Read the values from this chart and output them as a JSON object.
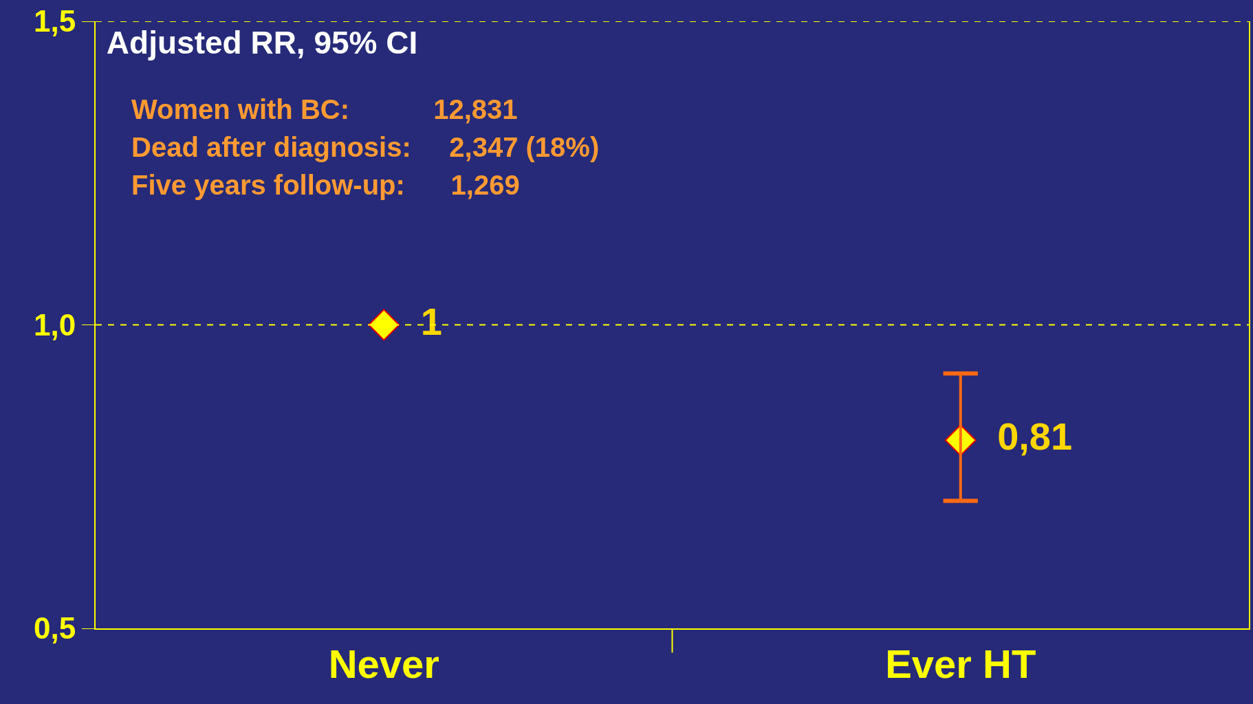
{
  "chart_data": {
    "type": "scatter",
    "title": "Adjusted RR, 95% CI",
    "categories": [
      "Never",
      "Ever HT"
    ],
    "values": [
      1,
      0.81
    ],
    "value_labels": [
      "1",
      "0,81"
    ],
    "errors": [
      null,
      [
        0.71,
        0.92
      ]
    ],
    "color": "#ffff00",
    "marker": "diamond",
    "ylim": [
      0.5,
      1.5
    ],
    "yticks": [
      {
        "value": 0.5,
        "label": "0,5"
      },
      {
        "value": 1.0,
        "label": "1,0"
      },
      {
        "value": 1.5,
        "label": "1,5"
      }
    ],
    "ref_lines": [
      {
        "axis": "y",
        "value": 1.0,
        "label": null,
        "color": "#ffff00",
        "line_style": "dashed"
      },
      {
        "axis": "y",
        "value": 1.5,
        "label": null,
        "color": "#ffff00",
        "line_style": "dashed"
      }
    ],
    "annotations": [
      "Women with BC:           12,831",
      "Dead after diagnosis:     2,347 (18%)",
      "Five years follow-up:      1,269"
    ]
  }
}
